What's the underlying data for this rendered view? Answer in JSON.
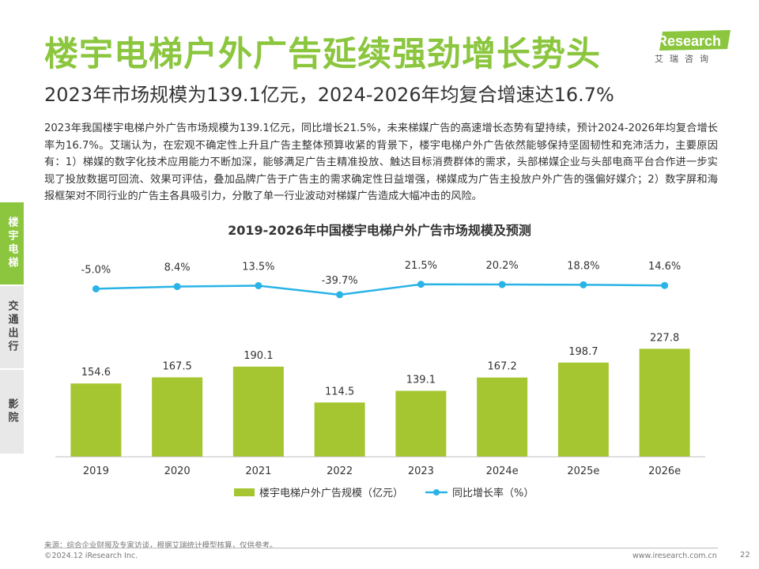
{
  "header": {
    "title": "楼宇电梯户外广告延续强劲增长势头",
    "subtitle": "2023年市场规模为139.1亿元，2024-2026年均复合增速达16.7%"
  },
  "body_text": "2023年我国楼宇电梯户外广告市场规模为139.1亿元，同比增长21.5%，未来梯媒广告的高速增长态势有望持续，预计2024-2026年均复合增长率为16.7%。艾瑞认为，在宏观不确定性上升且广告主整体预算收紧的背景下，楼宇电梯户外广告依然能够保持坚固韧性和充沛活力，主要原因有：1）梯媒的数字化技术应用能力不断加深，能够满足广告主精准投放、触达目标消费群体的需求，头部梯媒企业与头部电商平台合作进一步实现了投放数据可回流、效果可评估，叠加品牌广告于广告主的需求确定性日益增强，梯媒成为广告主投放户外广告的强偏好媒介；2）数字屏和海报框架对不同行业的广告主各具吸引力，分散了单一行业波动对梯媒广告造成大幅冲击的风险。",
  "logo": {
    "text": "iResearch",
    "tagline": "艾瑞咨询"
  },
  "side_nav": [
    {
      "label": "楼宇电梯",
      "active": true
    },
    {
      "label": "交通出行",
      "active": false
    },
    {
      "label": "影院",
      "active": false
    }
  ],
  "colors": {
    "accent": "#8bc63e",
    "bar": "#a5c630",
    "line": "#29b3e6"
  },
  "chart_data": {
    "type": "bar",
    "title": "2019-2026年中国楼宇电梯户外广告市场规模及预测",
    "categories": [
      "2019",
      "2020",
      "2021",
      "2022",
      "2023",
      "2024e",
      "2025e",
      "2026e"
    ],
    "series": [
      {
        "name": "楼宇电梯户外广告规模（亿元）",
        "type": "bar",
        "values": [
          154.6,
          167.5,
          190.1,
          114.5,
          139.1,
          167.2,
          198.7,
          227.8
        ],
        "labels": [
          "154.6",
          "167.5",
          "190.1",
          "114.5",
          "139.1",
          "167.2",
          "198.7",
          "227.8"
        ]
      },
      {
        "name": "同比增长率（%）",
        "type": "line",
        "values": [
          -5.0,
          8.4,
          13.5,
          -39.7,
          21.5,
          20.2,
          18.8,
          14.6
        ],
        "labels": [
          "-5.0%",
          "8.4%",
          "13.5%",
          "-39.7%",
          "21.5%",
          "20.2%",
          "18.8%",
          "14.6%"
        ]
      }
    ],
    "ylim": [
      0,
      240
    ],
    "legend_position": "bottom",
    "grid": false
  },
  "footer": {
    "source": "来源：综合企业财报及专家访谈，根据艾瑞统计模型核算，仅供参考。",
    "copyright": "©2024.12 iResearch Inc.",
    "website": "www.iresearch.com.cn",
    "page": "22"
  }
}
